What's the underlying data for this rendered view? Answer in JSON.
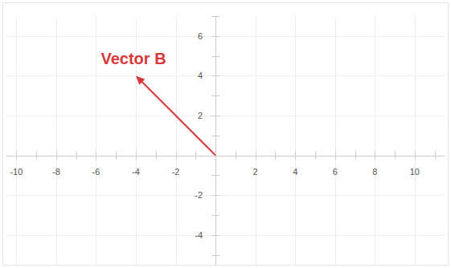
{
  "chart_data": {
    "type": "vector",
    "series": [
      {
        "name": "Vector B",
        "color": "#d9383a",
        "x": [
          0,
          -4
        ],
        "values": [
          0,
          4
        ]
      }
    ],
    "xlim": [
      -10.5,
      11.5
    ],
    "ylim": [
      -5.5,
      7
    ],
    "xticks": [
      -10,
      -8,
      -6,
      -4,
      -2,
      2,
      4,
      6,
      8,
      10
    ],
    "yticks": [
      -4,
      -2,
      2,
      4,
      6
    ],
    "grid": true
  }
}
